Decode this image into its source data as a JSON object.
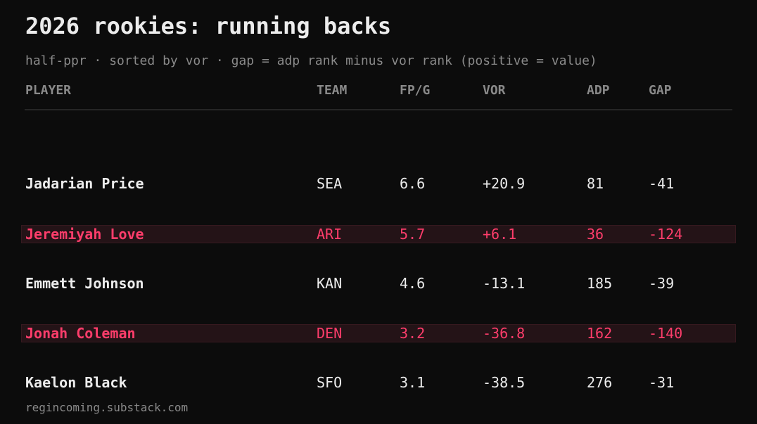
{
  "title": "2026 rookies: running backs",
  "subtitle": "half-ppr · sorted by vor · gap = adp rank minus vor rank (positive = value)",
  "footer": "regincoming.substack.com",
  "colors": {
    "background": "#0c0c0c",
    "text": "#ececec",
    "muted": "#8a8a8a",
    "highlight_text": "#ff3d6b",
    "highlight_bg": "#241317"
  },
  "chart_data": {
    "type": "table",
    "columns": [
      "PLAYER",
      "TEAM",
      "FP/G",
      "VOR",
      "ADP",
      "GAP"
    ],
    "rows": [
      {
        "player": "Jadarian Price",
        "team": "SEA",
        "fpg": "6.6",
        "vor": "+20.9",
        "adp": "81",
        "gap": "-41",
        "highlight": false
      },
      {
        "player": "Jeremiyah Love",
        "team": "ARI",
        "fpg": "5.7",
        "vor": "+6.1",
        "adp": "36",
        "gap": "-124",
        "highlight": true
      },
      {
        "player": "Emmett Johnson",
        "team": "KAN",
        "fpg": "4.6",
        "vor": "-13.1",
        "adp": "185",
        "gap": "-39",
        "highlight": false
      },
      {
        "player": "Jonah Coleman",
        "team": "DEN",
        "fpg": "3.2",
        "vor": "-36.8",
        "adp": "162",
        "gap": "-140",
        "highlight": true
      },
      {
        "player": "Kaelon Black",
        "team": "SFO",
        "fpg": "3.1",
        "vor": "-38.5",
        "adp": "276",
        "gap": "-31",
        "highlight": false
      }
    ]
  }
}
